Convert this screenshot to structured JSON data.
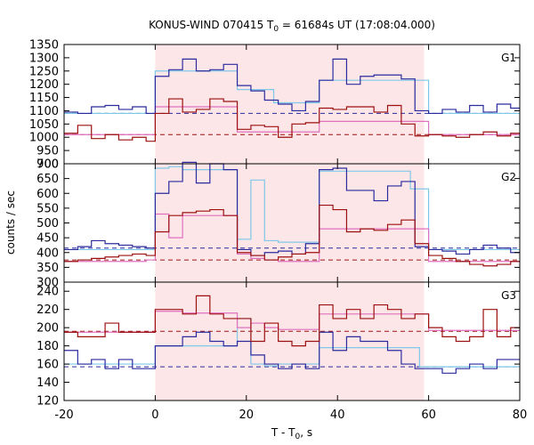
{
  "chart_data": {
    "type": "line",
    "title": "KONUS-WIND 070415 T",
    "title_sub": "0",
    "title_rest": " = 61684s UT (17:08:04.000)",
    "xlabel_main": "T - T",
    "xlabel_sub": "0",
    "xlabel_rest": ", s",
    "ylabel": "counts / sec",
    "xlim": [
      -20,
      80
    ],
    "xticks": [
      "-20",
      "0",
      "20",
      "40",
      "60",
      "80"
    ],
    "highlight_interval": [
      0,
      59
    ],
    "colors": {
      "blue": "#2b2b9e",
      "blue_fit": "#7ec8e8",
      "red": "#9c1010",
      "red_fit": "#e070c0",
      "shade": "#fde6e8"
    },
    "panels": [
      {
        "name": "G1",
        "ylim": [
          900,
          1350
        ],
        "yticks": [
          900,
          950,
          1000,
          1050,
          1100,
          1150,
          1200,
          1250,
          1300,
          1350
        ],
        "bg_blue": 1090,
        "bg_red": 1010,
        "blue": {
          "edges": [
            -20,
            -17,
            -14,
            -11,
            -8,
            -5,
            -2,
            0,
            3,
            6,
            9,
            12,
            15,
            18,
            21,
            24,
            27,
            30,
            33,
            36,
            39,
            42,
            45,
            48,
            51,
            54,
            57,
            60,
            63,
            66,
            69,
            72,
            75,
            78,
            80
          ],
          "values": [
            1095,
            1090,
            1115,
            1120,
            1105,
            1115,
            1090,
            1230,
            1255,
            1295,
            1250,
            1255,
            1275,
            1195,
            1175,
            1140,
            1125,
            1100,
            1135,
            1215,
            1295,
            1200,
            1230,
            1235,
            1235,
            1220,
            1100,
            1090,
            1105,
            1095,
            1120,
            1095,
            1125,
            1110
          ]
        },
        "blue_fit": {
          "edges": [
            -20,
            0,
            18,
            26,
            36,
            56,
            60,
            80
          ],
          "values": [
            1090,
            1250,
            1180,
            1130,
            1215,
            1215,
            1090
          ]
        },
        "red": {
          "edges": [
            -20,
            -17,
            -14,
            -11,
            -8,
            -5,
            -2,
            0,
            3,
            6,
            9,
            12,
            15,
            18,
            21,
            24,
            27,
            30,
            33,
            36,
            39,
            42,
            45,
            48,
            51,
            54,
            57,
            60,
            63,
            66,
            69,
            72,
            75,
            78,
            80
          ],
          "values": [
            1015,
            1045,
            995,
            1010,
            990,
            1000,
            985,
            1090,
            1145,
            1095,
            1105,
            1145,
            1135,
            1030,
            1045,
            1040,
            1000,
            1050,
            1055,
            1110,
            1105,
            1115,
            1115,
            1095,
            1120,
            1050,
            1005,
            1010,
            1005,
            1000,
            1010,
            1020,
            1005,
            1015
          ]
        },
        "red_fit": {
          "edges": [
            -20,
            0,
            18,
            26,
            36,
            56,
            60,
            80
          ],
          "values": [
            1010,
            1115,
            1020,
            1020,
            1060,
            1060,
            1010
          ]
        }
      },
      {
        "name": "G2",
        "ylim": [
          300,
          700
        ],
        "yticks": [
          300,
          350,
          400,
          450,
          500,
          550,
          600,
          650,
          700
        ],
        "bg_blue": 415,
        "bg_red": 375,
        "blue": {
          "edges": [
            -20,
            -17,
            -14,
            -11,
            -8,
            -5,
            -2,
            0,
            3,
            6,
            9,
            12,
            15,
            18,
            21,
            24,
            27,
            30,
            33,
            36,
            39,
            42,
            45,
            48,
            51,
            54,
            57,
            60,
            63,
            66,
            69,
            72,
            75,
            78,
            80
          ],
          "values": [
            410,
            420,
            440,
            430,
            425,
            420,
            415,
            600,
            640,
            705,
            635,
            700,
            680,
            410,
            390,
            400,
            405,
            395,
            430,
            680,
            685,
            610,
            610,
            575,
            625,
            640,
            420,
            410,
            405,
            395,
            410,
            425,
            415,
            400
          ]
        },
        "blue_fit": {
          "edges": [
            -20,
            0,
            3,
            6,
            18,
            21,
            24,
            27,
            36,
            56,
            60,
            80
          ],
          "values": [
            410,
            685,
            690,
            680,
            445,
            645,
            440,
            435,
            675,
            615,
            410,
            410
          ]
        },
        "red": {
          "edges": [
            -20,
            -17,
            -14,
            -11,
            -8,
            -5,
            -2,
            0,
            3,
            6,
            9,
            12,
            15,
            18,
            21,
            24,
            27,
            30,
            33,
            36,
            39,
            42,
            45,
            48,
            51,
            54,
            57,
            60,
            63,
            66,
            69,
            72,
            75,
            78,
            80
          ],
          "values": [
            370,
            375,
            380,
            385,
            390,
            395,
            390,
            470,
            525,
            535,
            540,
            545,
            525,
            400,
            390,
            375,
            385,
            395,
            400,
            560,
            545,
            470,
            480,
            475,
            495,
            510,
            430,
            390,
            380,
            370,
            360,
            355,
            360,
            370
          ]
        },
        "red_fit": {
          "edges": [
            -20,
            -2,
            0,
            3,
            6,
            18,
            21,
            24,
            27,
            36,
            56,
            60,
            80
          ],
          "values": [
            370,
            375,
            530,
            450,
            525,
            395,
            380,
            375,
            370,
            480,
            480,
            370,
            370
          ]
        }
      },
      {
        "name": "G3",
        "ylim": [
          120,
          250
        ],
        "yticks": [
          120,
          140,
          160,
          180,
          200,
          220,
          240
        ],
        "bg_blue": 157,
        "bg_red": 196,
        "blue": {
          "edges": [
            -20,
            -17,
            -14,
            -11,
            -8,
            -5,
            -2,
            0,
            3,
            6,
            9,
            12,
            15,
            18,
            21,
            24,
            27,
            30,
            33,
            36,
            39,
            42,
            45,
            48,
            51,
            54,
            57,
            60,
            63,
            66,
            69,
            72,
            75,
            78,
            80
          ],
          "values": [
            175,
            160,
            165,
            155,
            165,
            155,
            155,
            180,
            180,
            190,
            195,
            185,
            180,
            185,
            170,
            160,
            155,
            160,
            155,
            195,
            175,
            190,
            185,
            185,
            175,
            160,
            155,
            155,
            150,
            155,
            160,
            155,
            165,
            165
          ]
        },
        "blue_fit": {
          "edges": [
            -20,
            0,
            18,
            21,
            24,
            27,
            36,
            58,
            80
          ],
          "values": [
            160,
            180,
            210,
            160,
            158,
            160,
            178,
            157
          ]
        },
        "red": {
          "edges": [
            -20,
            -17,
            -14,
            -11,
            -8,
            -5,
            -2,
            0,
            3,
            6,
            9,
            12,
            15,
            18,
            21,
            24,
            27,
            30,
            33,
            36,
            39,
            42,
            45,
            48,
            51,
            54,
            57,
            60,
            63,
            66,
            69,
            72,
            75,
            78,
            80
          ],
          "values": [
            195,
            190,
            190,
            205,
            195,
            195,
            195,
            220,
            220,
            215,
            235,
            215,
            210,
            210,
            185,
            205,
            185,
            180,
            185,
            225,
            210,
            220,
            210,
            225,
            220,
            210,
            215,
            200,
            190,
            185,
            190,
            220,
            190,
            200
          ]
        },
        "red_fit": {
          "edges": [
            -20,
            -2,
            0,
            3,
            6,
            18,
            21,
            24,
            27,
            36,
            56,
            60,
            80
          ],
          "values": [
            195,
            195,
            218,
            218,
            216,
            200,
            205,
            200,
            198,
            215,
            215,
            197,
            197
          ]
        }
      }
    ]
  }
}
